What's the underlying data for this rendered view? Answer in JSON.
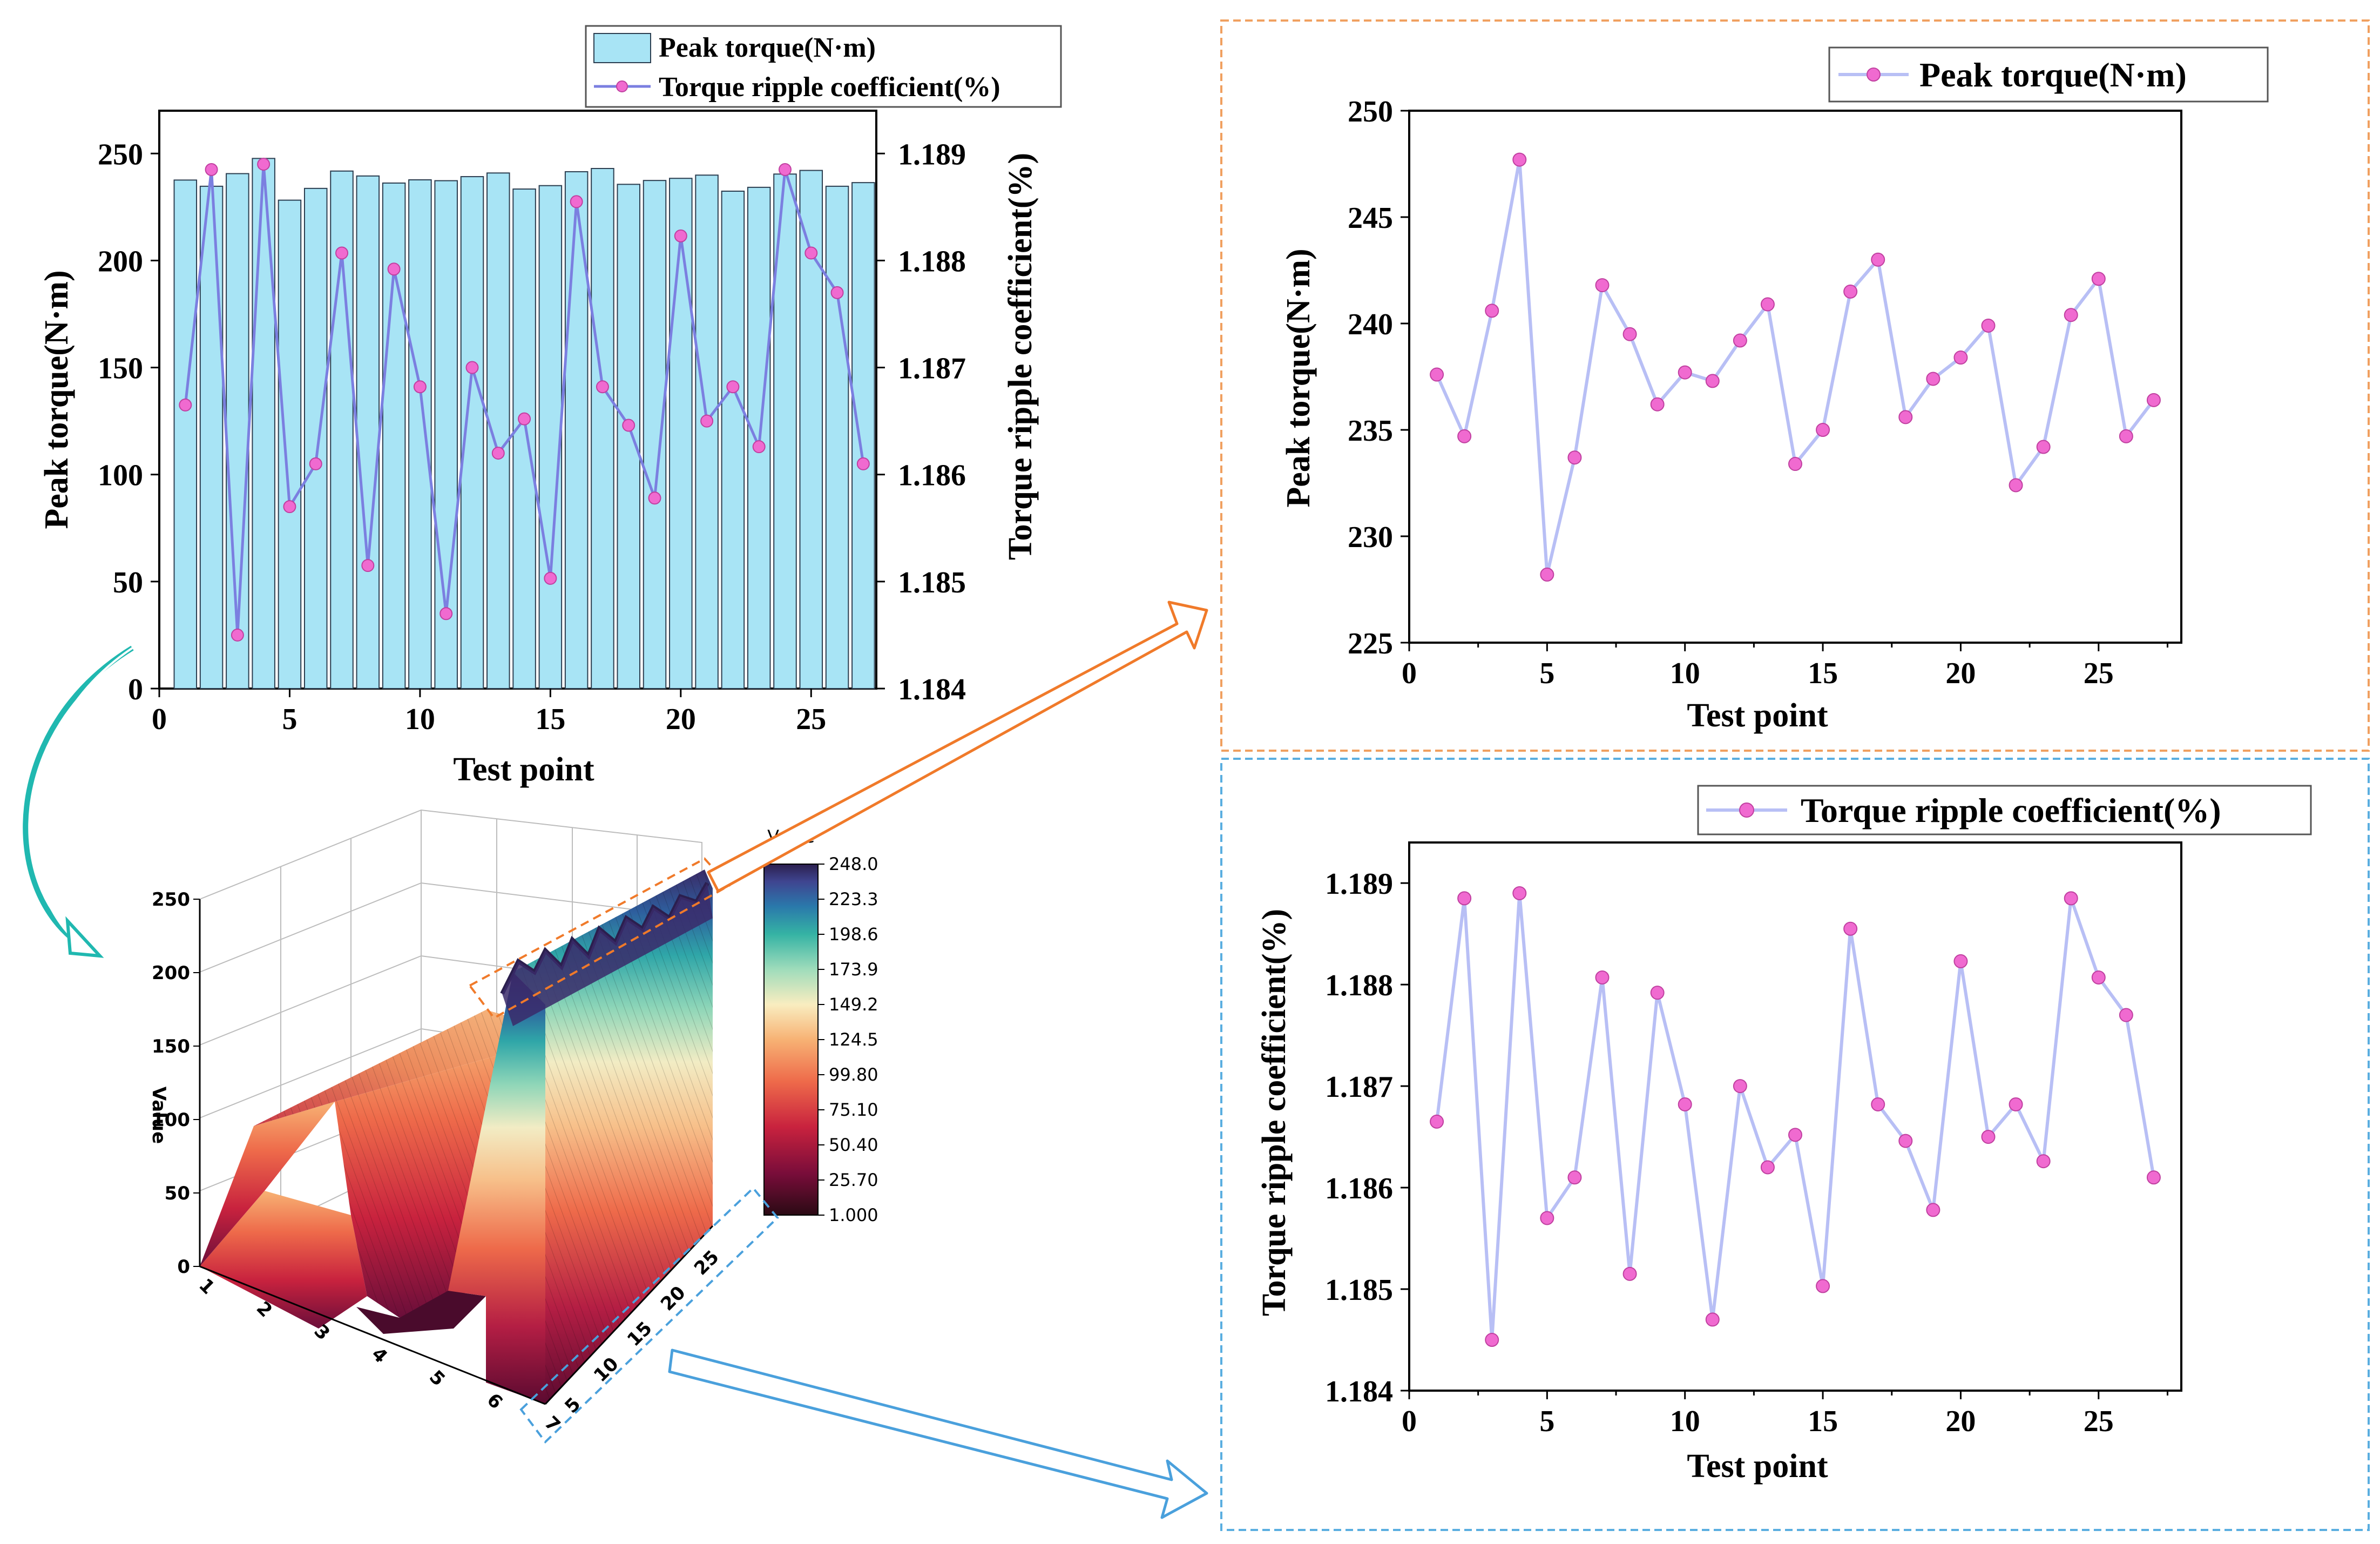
{
  "chart_data": [
    {
      "id": "combined",
      "type": "bar",
      "xlabel": "Test point",
      "ylabel": "Peak torque(N·m)",
      "y2label": "Torque ripple coefficient(%)",
      "xlim": [
        0,
        27.5
      ],
      "ylim": [
        0,
        270
      ],
      "y2lim": [
        1.184,
        1.1894
      ],
      "xticks": [
        0,
        5,
        10,
        15,
        20,
        25
      ],
      "yticks": [
        0,
        50,
        100,
        150,
        200,
        250
      ],
      "y2ticks": [
        1.184,
        1.185,
        1.186,
        1.187,
        1.188,
        1.189
      ],
      "series": [
        {
          "name": "Peak torque(N·m)",
          "kind": "bar",
          "axis": "left"
        },
        {
          "name": "Torque ripple coefficient(%)",
          "kind": "line",
          "axis": "right"
        }
      ],
      "legend": "top-right-outside"
    },
    {
      "id": "peak",
      "type": "line",
      "xlabel": "Test point",
      "ylabel": "Peak torque(N·m)",
      "xlim": [
        0,
        28
      ],
      "ylim": [
        225,
        250
      ],
      "xticks": [
        0,
        5,
        10,
        15,
        20,
        25
      ],
      "yticks": [
        225,
        230,
        235,
        240,
        245,
        250
      ],
      "series": [
        {
          "name": "Peak torque(N·m)"
        }
      ],
      "legend": "top-right"
    },
    {
      "id": "ripple",
      "type": "line",
      "xlabel": "Test point",
      "ylabel": "Torque ripple coefficient(%)",
      "xlim": [
        0,
        28
      ],
      "ylim": [
        1.184,
        1.1894
      ],
      "xticks": [
        0,
        5,
        10,
        15,
        20,
        25
      ],
      "yticks": [
        1.184,
        1.185,
        1.186,
        1.187,
        1.188,
        1.189
      ],
      "series": [
        {
          "name": "Torque ripple coefficient(%)"
        }
      ],
      "legend": "top-right"
    },
    {
      "id": "surface3d",
      "type": "heatmap",
      "zlabel": "Value",
      "zticks": [
        0,
        50,
        100,
        150,
        200,
        250
      ],
      "xticks": [
        1,
        2,
        3,
        4,
        5,
        6,
        7
      ],
      "yticks": [
        5,
        10,
        15,
        20,
        25
      ],
      "colorbar_title": "Value",
      "colorbar_ticks": [
        "248.0",
        "223.3",
        "198.6",
        "173.9",
        "149.2",
        "124.5",
        "99.80",
        "75.10",
        "50.40",
        "25.70",
        "1.000"
      ]
    }
  ],
  "data": {
    "x": [
      1,
      2,
      3,
      4,
      5,
      6,
      7,
      8,
      9,
      10,
      11,
      12,
      13,
      14,
      15,
      16,
      17,
      18,
      19,
      20,
      21,
      22,
      23,
      24,
      25,
      26,
      27
    ],
    "peak_torque": [
      237.6,
      234.7,
      240.6,
      247.7,
      228.2,
      233.7,
      241.8,
      239.5,
      236.2,
      237.7,
      237.3,
      239.2,
      240.9,
      233.4,
      235.0,
      241.5,
      243.0,
      235.6,
      237.4,
      238.4,
      239.9,
      232.4,
      234.2,
      240.4,
      242.1,
      234.7,
      236.4
    ],
    "ripple": [
      1.18665,
      1.18885,
      1.1845,
      1.1889,
      1.1857,
      1.1861,
      1.18807,
      1.18515,
      1.18792,
      1.18682,
      1.1847,
      1.187,
      1.1862,
      1.18652,
      1.18503,
      1.18855,
      1.18682,
      1.18646,
      1.18578,
      1.18823,
      1.1865,
      1.18682,
      1.18626,
      1.18885,
      1.18807,
      1.1877,
      1.1861
    ]
  },
  "colors": {
    "bar_fill": "#a8e4f5",
    "bar_stroke": "#2c3e50",
    "line_dark": "#7b7fe0",
    "line_light": "#b8bff5",
    "marker": "#f06ad0",
    "orange": "#f0a060",
    "blue": "#5aaee0",
    "teal_arrow": "#20b8b0",
    "arrow_orange": "#f07a2a",
    "arrow_blue": "#4aa0dc"
  }
}
